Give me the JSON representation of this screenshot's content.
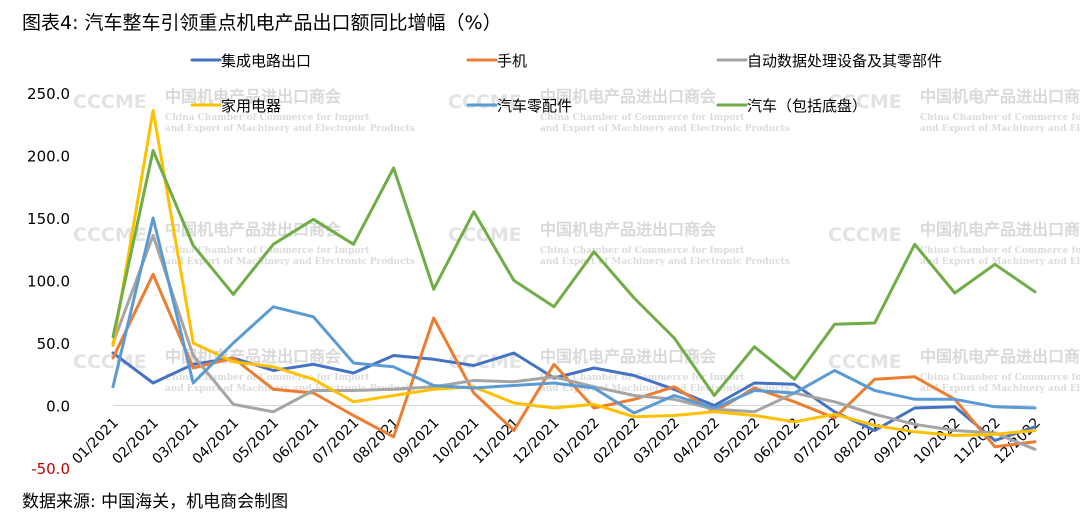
{
  "header": {
    "title": "图表4: 汽车整车引领重点机电产品出口额同比增幅（%）"
  },
  "footer": {
    "source": "数据来源: 中国海关，机电商会制图"
  },
  "watermark": {
    "logo": "CCCME",
    "title": "中国机电产品进出口商会",
    "subtitle_line1": "China Chamber of Commerce for Import",
    "subtitle_line2": "and Export of Machinery and Electronic Products"
  },
  "chart_data": {
    "type": "line",
    "title": "汽车整车引领重点机电产品出口额同比增幅（%）",
    "xlabel": "",
    "ylabel": "",
    "ylim": [
      -50,
      250
    ],
    "yticks": [
      -50,
      0,
      50,
      100,
      150,
      200,
      250
    ],
    "ytick_labels": [
      "-50.0",
      "0.0",
      "50.0",
      "100.0",
      "150.0",
      "200.0",
      "250.0"
    ],
    "grid": false,
    "legend_position": "top",
    "categories": [
      "01/2021",
      "02/2021",
      "03/2021",
      "04/2021",
      "05/2021",
      "06/2021",
      "07/2021",
      "08/2021",
      "09/2021",
      "10/2021",
      "11/2021",
      "12/2021",
      "01/2022",
      "02/2022",
      "03/2022",
      "04/2022",
      "05/2022",
      "06/2022",
      "07/2022",
      "08/2022",
      "09/2022",
      "10/2022",
      "11/2022",
      "12/2022"
    ],
    "series": [
      {
        "name": "集成电路出口",
        "color": "#4472c4",
        "values": [
          42,
          18,
          33,
          38,
          28,
          33,
          26,
          40,
          37,
          32,
          42,
          22,
          30,
          24,
          13,
          0,
          18,
          17,
          -5,
          -20,
          -2,
          -1,
          -28,
          -17
        ]
      },
      {
        "name": "手机",
        "color": "#ed7d31",
        "values": [
          38,
          105,
          30,
          38,
          13,
          10,
          -8,
          -25,
          70,
          10,
          -20,
          33,
          -2,
          5,
          15,
          -5,
          14,
          3,
          -10,
          21,
          23,
          5,
          -33,
          -29
        ]
      },
      {
        "name": "自动数据处理设备及其零部件",
        "color": "#a5a5a5",
        "values": [
          50,
          136,
          40,
          1,
          -5,
          12,
          12,
          13,
          15,
          20,
          19,
          23,
          15,
          8,
          5,
          -3,
          -5,
          10,
          3,
          -7,
          -15,
          -20,
          -22,
          -35
        ]
      },
      {
        "name": "家用电器",
        "color": "#ffc000",
        "values": [
          48,
          236,
          50,
          35,
          31,
          21,
          3,
          8,
          13,
          15,
          2,
          -2,
          1,
          -9,
          -8,
          -5,
          -8,
          -13,
          -7,
          -16,
          -21,
          -24,
          -23,
          -20
        ]
      },
      {
        "name": "汽车零配件",
        "color": "#5b9bd5",
        "values": [
          15,
          150,
          18,
          50,
          79,
          71,
          34,
          31,
          16,
          14,
          16,
          18,
          14,
          -6,
          8,
          -2,
          12,
          10,
          28,
          12,
          5,
          5,
          -1,
          -2
        ]
      },
      {
        "name": "汽车（包括底盘）",
        "color": "#70ad47",
        "values": [
          55,
          204,
          128,
          89,
          129,
          149,
          129,
          190,
          93,
          155,
          100,
          79,
          123,
          86,
          54,
          8,
          47,
          21,
          65,
          66,
          129,
          90,
          113,
          91
        ]
      }
    ]
  }
}
